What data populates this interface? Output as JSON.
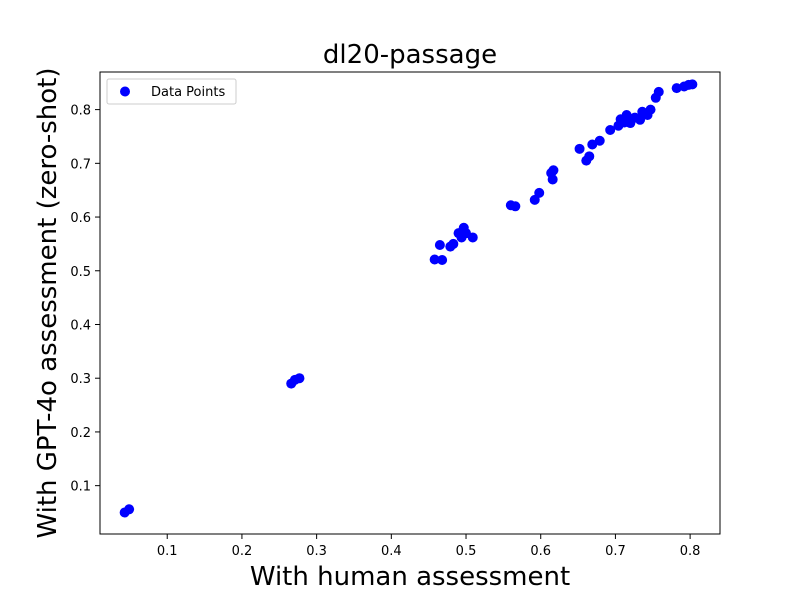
{
  "chart_data": {
    "type": "scatter",
    "title": "dl20-passage",
    "xlabel": "With human assessment",
    "ylabel": "With GPT-4o assessment (zero-shot)",
    "xlim": [
      0.01,
      0.84
    ],
    "ylim": [
      0.01,
      0.87
    ],
    "xticks": [
      "0.1",
      "0.2",
      "0.3",
      "0.4",
      "0.5",
      "0.6",
      "0.7",
      "0.8"
    ],
    "yticks": [
      "0.1",
      "0.2",
      "0.3",
      "0.4",
      "0.5",
      "0.6",
      "0.7",
      "0.8"
    ],
    "grid": false,
    "legend_position": "top-left",
    "series": [
      {
        "name": "Data Points",
        "color": "#0000ff",
        "marker": "circle",
        "points": [
          [
            0.043,
            0.05
          ],
          [
            0.049,
            0.056
          ],
          [
            0.266,
            0.29
          ],
          [
            0.271,
            0.297
          ],
          [
            0.277,
            0.3
          ],
          [
            0.458,
            0.521
          ],
          [
            0.465,
            0.548
          ],
          [
            0.468,
            0.52
          ],
          [
            0.479,
            0.545
          ],
          [
            0.483,
            0.55
          ],
          [
            0.49,
            0.57
          ],
          [
            0.494,
            0.562
          ],
          [
            0.497,
            0.58
          ],
          [
            0.5,
            0.57
          ],
          [
            0.509,
            0.562
          ],
          [
            0.56,
            0.622
          ],
          [
            0.566,
            0.62
          ],
          [
            0.592,
            0.632
          ],
          [
            0.598,
            0.645
          ],
          [
            0.614,
            0.682
          ],
          [
            0.617,
            0.687
          ],
          [
            0.616,
            0.67
          ],
          [
            0.652,
            0.727
          ],
          [
            0.661,
            0.705
          ],
          [
            0.665,
            0.713
          ],
          [
            0.669,
            0.735
          ],
          [
            0.679,
            0.742
          ],
          [
            0.693,
            0.762
          ],
          [
            0.704,
            0.77
          ],
          [
            0.707,
            0.782
          ],
          [
            0.712,
            0.776
          ],
          [
            0.715,
            0.79
          ],
          [
            0.72,
            0.775
          ],
          [
            0.726,
            0.785
          ],
          [
            0.733,
            0.781
          ],
          [
            0.736,
            0.796
          ],
          [
            0.743,
            0.79
          ],
          [
            0.747,
            0.8
          ],
          [
            0.754,
            0.822
          ],
          [
            0.758,
            0.833
          ],
          [
            0.782,
            0.84
          ],
          [
            0.792,
            0.843
          ],
          [
            0.798,
            0.846
          ],
          [
            0.803,
            0.847
          ]
        ]
      }
    ]
  }
}
